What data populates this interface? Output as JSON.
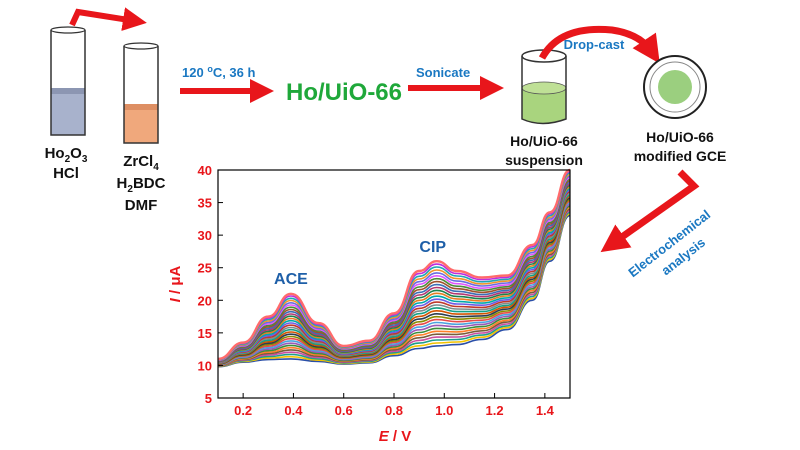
{
  "scheme": {
    "tube1": {
      "line1": "Ho",
      "line1_sub": "2",
      "line1_rest": "O",
      "line1_sub2": "3",
      "line2": "HCl"
    },
    "tube2": {
      "line1": "ZrCl",
      "line1_sub": "4",
      "line2": "H",
      "line2_sub": "2",
      "line2_rest": "BDC",
      "line3": "DMF"
    },
    "step1_label_a": "120 ",
    "step1_label_sup": "o",
    "step1_label_b": "C, 36 h",
    "product": "Ho/UiO-66",
    "step2_label": "Sonicate",
    "suspension_line1": "Ho/UiO-66",
    "suspension_line2": "suspension",
    "dropcast_label": "Drop-cast",
    "electrode_line1": "Ho/UiO-66",
    "electrode_line2": "modified GCE",
    "analysis_line1": "Electrochemical",
    "analysis_line2": "analysis",
    "colors": {
      "arrow": "#e8161b",
      "product": "#1fa83a",
      "step_label": "#1a78c2",
      "hcl_liquid": "#a8b2cc",
      "zr_liquid": "#f0a87c",
      "suspension_liquid": "#a9d47e",
      "electrode_disk": "#9bcf7f"
    }
  },
  "chart_data": {
    "type": "line",
    "xlabel_italic": "E",
    "xlabel_rest": " / V",
    "ylabel_italic": "I",
    "ylabel_rest": " / μA",
    "xlim": [
      0.1,
      1.5
    ],
    "ylim": [
      5,
      40
    ],
    "xticks": [
      "0.2",
      "0.4",
      "0.6",
      "0.8",
      "1.0",
      "1.2",
      "1.4"
    ],
    "yticks": [
      "5",
      "10",
      "15",
      "20",
      "25",
      "30",
      "35",
      "40"
    ],
    "annotations": [
      "ACE",
      "CIP"
    ],
    "peak_ace": {
      "x": 0.39,
      "y_min": 11,
      "y_max": 21
    },
    "peak_cip": {
      "x": 0.97,
      "y_min": 13,
      "y_max": 26
    },
    "curve_count": 30,
    "x": [
      0.1,
      0.2,
      0.3,
      0.39,
      0.5,
      0.6,
      0.7,
      0.8,
      0.9,
      0.97,
      1.05,
      1.15,
      1.25,
      1.35,
      1.42,
      1.5
    ],
    "envelope_low": [
      9.8,
      10.5,
      10.9,
      11.0,
      10.6,
      10.2,
      10.4,
      11.5,
      12.6,
      13.0,
      13.2,
      14.0,
      15.5,
      20.0,
      26.0,
      33.0
    ],
    "envelope_high": [
      11.0,
      13.5,
      17.5,
      21.0,
      16.5,
      13.0,
      13.8,
      18.0,
      24.5,
      26.0,
      24.5,
      23.5,
      23.8,
      28.5,
      33.5,
      40.0
    ],
    "series_colors": [
      "#2a4fa8",
      "#f2c200",
      "#1f9e8c",
      "#c94fa0",
      "#7a5c3a",
      "#ff7f2a",
      "#3c8d3c",
      "#9b59b6",
      "#4aa3df",
      "#e84a4a",
      "#8b8b00",
      "#2c3e50",
      "#d35400",
      "#16a085",
      "#7f8c8d",
      "#c0392b",
      "#6c5ce7",
      "#00a8a8",
      "#e67e22",
      "#1e824c",
      "#b33771",
      "#3b6fb6",
      "#a0522d",
      "#4b8b3b",
      "#e056fd",
      "#686de0",
      "#f0932b",
      "#22a6b3",
      "#be2edd",
      "#ff6b6b"
    ]
  }
}
